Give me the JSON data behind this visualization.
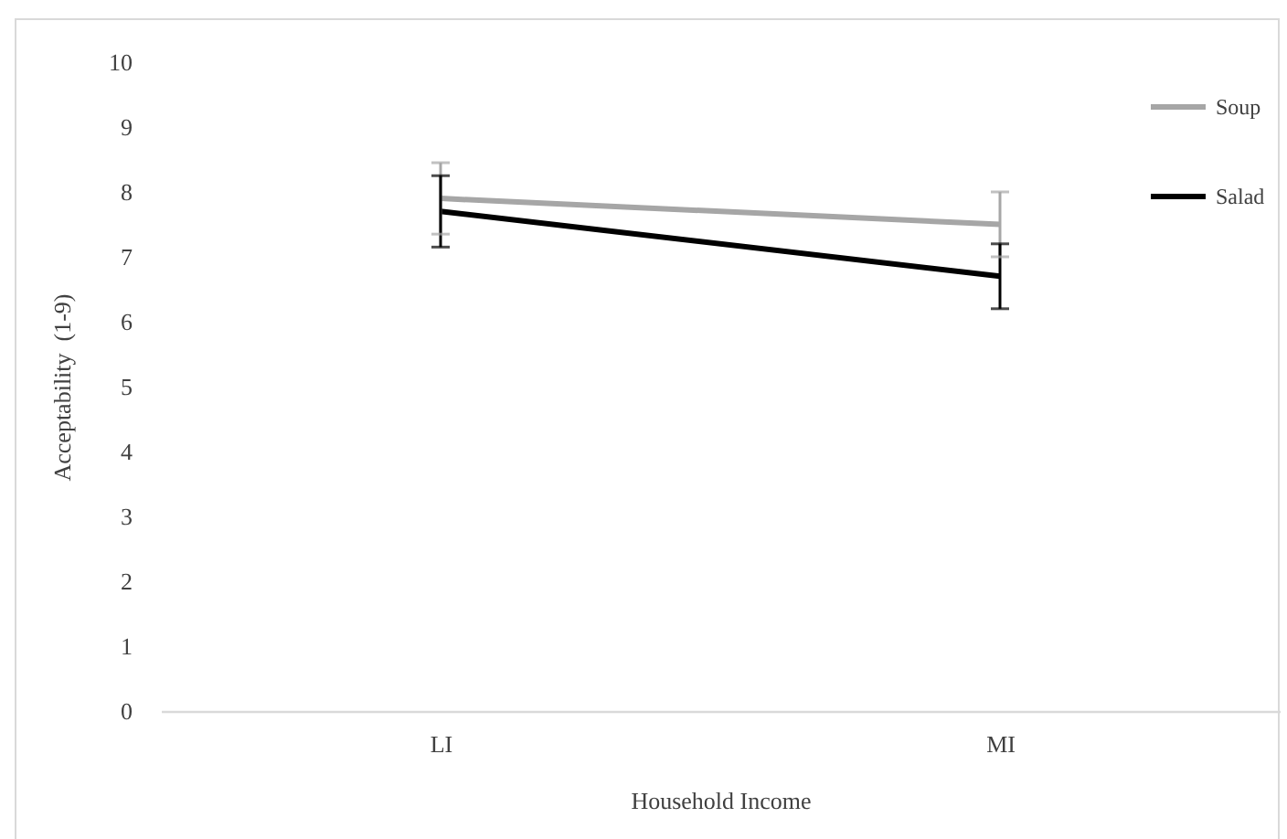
{
  "chart_data": {
    "type": "line",
    "xlabel": "Household Income",
    "ylabel": "Acceptability  (1-9)",
    "categories": [
      "LI",
      "MI"
    ],
    "series": [
      {
        "name": "Soup",
        "color": "#a6a6a6",
        "values": [
          7.9,
          7.5
        ],
        "errors": [
          0.55,
          0.5
        ]
      },
      {
        "name": "Salad",
        "color": "#000000",
        "values": [
          7.7,
          6.7
        ],
        "errors": [
          0.55,
          0.5
        ]
      }
    ],
    "ylim": [
      0,
      10
    ],
    "yticks": [
      0,
      1,
      2,
      3,
      4,
      5,
      6,
      7,
      8,
      9,
      10
    ],
    "grid": false,
    "legend": "top right",
    "marker": "none",
    "line_style": "solid"
  }
}
